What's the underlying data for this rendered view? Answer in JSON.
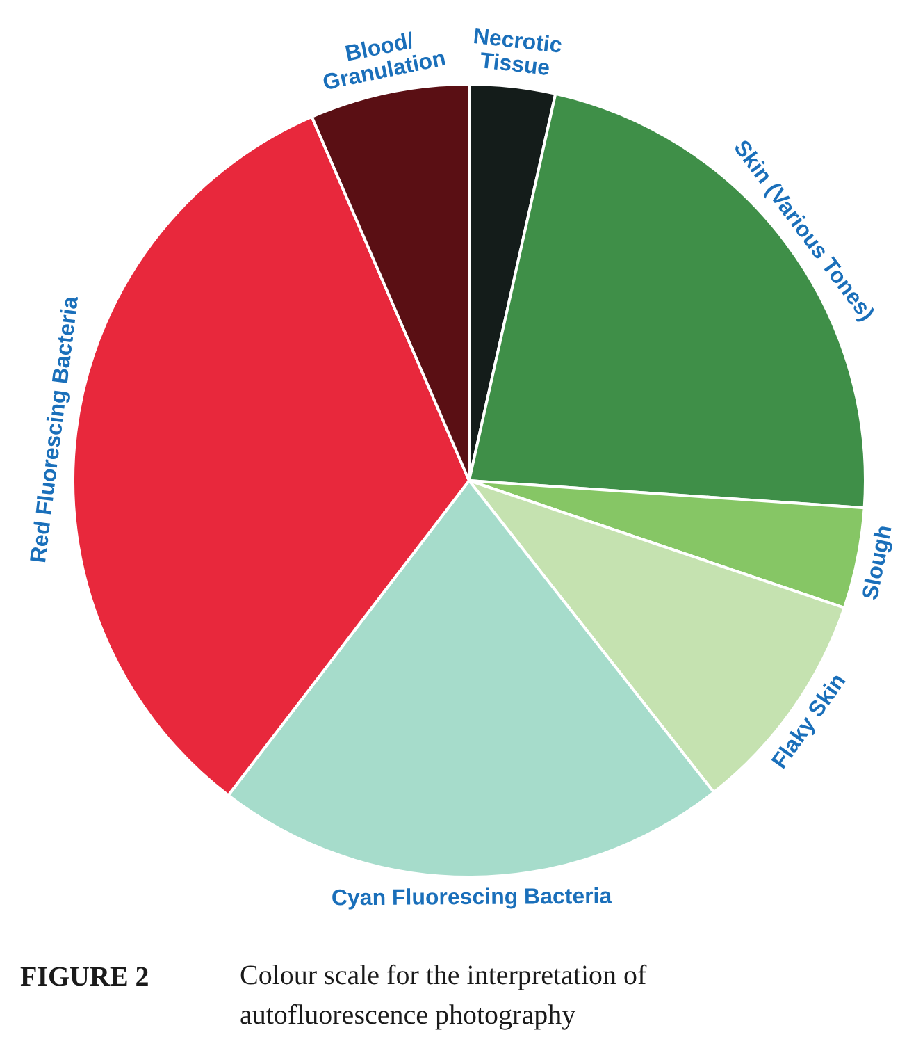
{
  "chart_data": {
    "type": "pie",
    "categories": [
      "Necrotic Tissue",
      "Skin (Various Tones)",
      "Slough",
      "Flaky Skin",
      "Cyan Fluorescing Bacteria",
      "Red Fluorescing Bacteria",
      "Blood/Granulation"
    ],
    "values": [
      3.5,
      22.6,
      4.1,
      9.2,
      21.0,
      33.1,
      6.5
    ],
    "colors": [
      "#141c1a",
      "#3f8f48",
      "#86c665",
      "#c5e2b0",
      "#a6dccb",
      "#e8283c",
      "#5a0f14"
    ],
    "annotations": [
      "FIGURE 2",
      "Colour scale for the interpretation of autofluorescence photography"
    ]
  }
}
